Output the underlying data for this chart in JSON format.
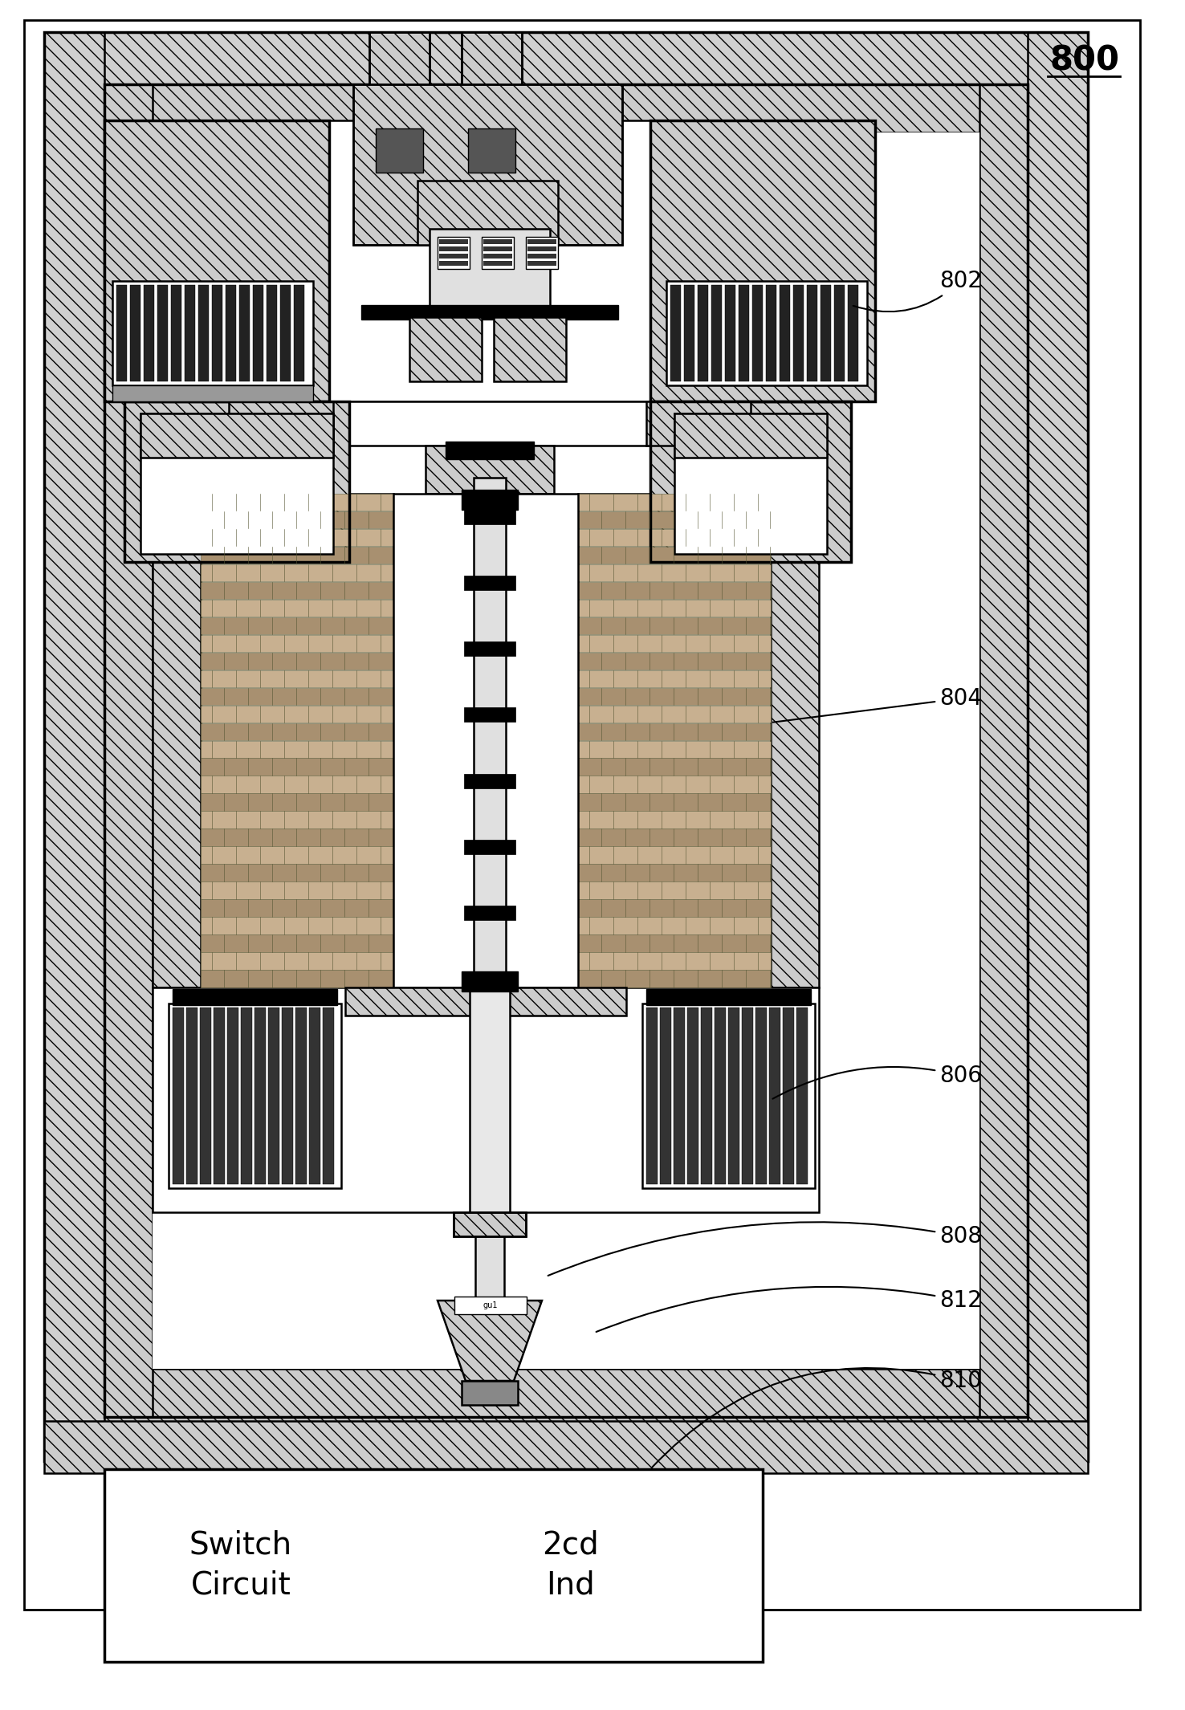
{
  "fig_width": 14.76,
  "fig_height": 21.3,
  "bg_color": "#ffffff",
  "title_label": "800",
  "component_labels": [
    "802",
    "804",
    "806",
    "808",
    "812",
    "810"
  ],
  "legend_label1": "Switch\nCircuit",
  "legend_label2": "2cd\nInd",
  "label_fontsize": 20,
  "legend_fontsize": 28
}
